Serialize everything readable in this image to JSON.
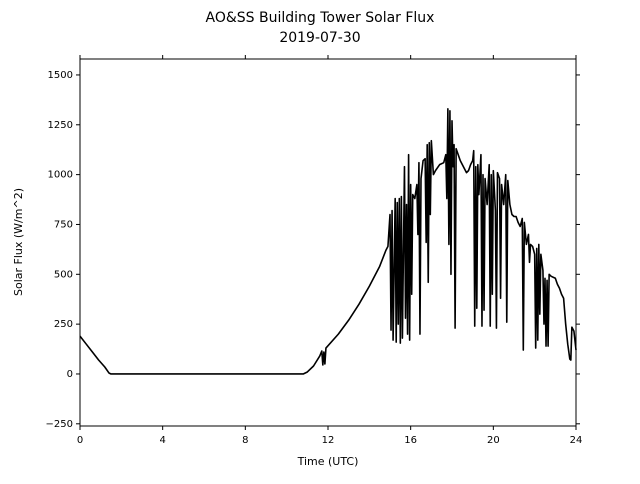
{
  "chart_data": {
    "type": "line",
    "title": "AO&SS Building Tower Solar Flux",
    "subtitle": "2019-07-30",
    "x_label": "Time (UTC)",
    "y_label": "Solar Flux (W/m^2)",
    "xlim": [
      0,
      24
    ],
    "xticks": [
      0,
      4,
      8,
      12,
      16,
      20,
      24
    ],
    "ylim": [
      -261,
      1580
    ],
    "yticks": [
      {
        "value": -250,
        "label": "−250"
      },
      0,
      250,
      500,
      750,
      1000,
      1250,
      1500
    ],
    "series": [
      {
        "color": "#000000",
        "x": [
          0,
          0.3,
          0.6,
          0.9,
          1.2,
          1.4,
          1.5,
          10.8,
          11.0,
          11.3,
          11.6,
          11.7,
          11.75,
          11.8,
          11.85,
          11.9,
          12.5,
          13,
          13.5,
          14,
          14.5,
          14.8,
          14.9,
          15.0,
          15.05,
          15.1,
          15.15,
          15.25,
          15.3,
          15.35,
          15.4,
          15.45,
          15.5,
          15.55,
          15.6,
          15.7,
          15.75,
          15.8,
          15.85,
          15.9,
          15.95,
          16.0,
          16.05,
          16.1,
          16.2,
          16.3,
          16.35,
          16.4,
          16.45,
          16.5,
          16.6,
          16.7,
          16.75,
          16.8,
          16.85,
          16.9,
          16.95,
          17.0,
          17.1,
          17.2,
          17.4,
          17.6,
          17.7,
          17.75,
          17.8,
          17.85,
          17.9,
          17.95,
          18.0,
          18.05,
          18.1,
          18.15,
          18.2,
          18.3,
          18.4,
          18.5,
          18.6,
          18.7,
          18.8,
          18.9,
          19.0,
          19.05,
          19.1,
          19.15,
          19.2,
          19.25,
          19.3,
          19.4,
          19.45,
          19.5,
          19.55,
          19.6,
          19.7,
          19.8,
          19.85,
          19.9,
          19.95,
          20.0,
          20.1,
          20.15,
          20.2,
          20.3,
          20.35,
          20.4,
          20.5,
          20.6,
          20.65,
          20.7,
          20.8,
          20.9,
          21.0,
          21.1,
          21.2,
          21.3,
          21.4,
          21.45,
          21.5,
          21.6,
          21.7,
          21.75,
          21.8,
          21.9,
          22.0,
          22.05,
          22.1,
          22.15,
          22.2,
          22.25,
          22.3,
          22.4,
          22.45,
          22.5,
          22.55,
          22.6,
          22.65,
          22.7,
          22.8,
          23.0,
          23.1,
          23.2,
          23.3,
          23.4,
          23.5,
          23.6,
          23.7,
          23.75,
          23.8,
          23.9,
          24.0
        ],
        "values": [
          190,
          150,
          110,
          70,
          35,
          5,
          0,
          0,
          10,
          40,
          90,
          115,
          45,
          110,
          50,
          130,
          200,
          270,
          350,
          440,
          540,
          620,
          640,
          800,
          220,
          820,
          170,
          880,
          160,
          860,
          250,
          880,
          155,
          890,
          180,
          1040,
          280,
          850,
          200,
          1100,
          170,
          950,
          400,
          900,
          880,
          950,
          700,
          1060,
          200,
          980,
          1070,
          1080,
          660,
          1150,
          460,
          1160,
          800,
          1170,
          1000,
          1020,
          1050,
          1060,
          1100,
          880,
          1330,
          650,
          1320,
          500,
          1270,
          1040,
          1150,
          230,
          1130,
          1100,
          1070,
          1050,
          1030,
          1010,
          1020,
          1050,
          1070,
          1120,
          240,
          1040,
          330,
          1050,
          900,
          1100,
          240,
          1000,
          320,
          980,
          850,
          1050,
          240,
          1000,
          400,
          1020,
          820,
          230,
          1010,
          980,
          380,
          950,
          850,
          1000,
          260,
          970,
          850,
          800,
          790,
          790,
          760,
          740,
          780,
          120,
          760,
          650,
          700,
          560,
          650,
          640,
          600,
          130,
          630,
          170,
          650,
          300,
          600,
          520,
          250,
          480,
          140,
          470,
          140,
          500,
          490,
          480,
          450,
          430,
          400,
          380,
          250,
          150,
          75,
          70,
          235,
          215,
          120
        ]
      }
    ]
  }
}
